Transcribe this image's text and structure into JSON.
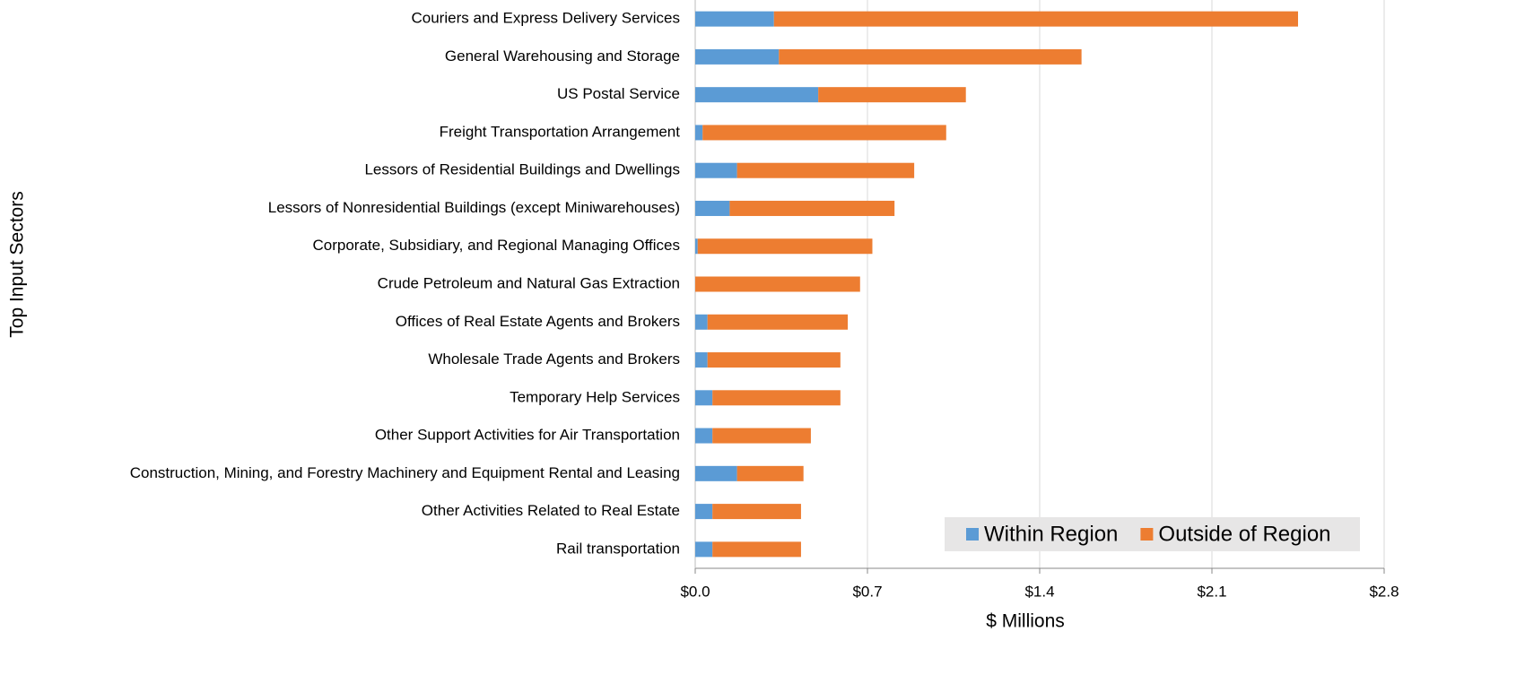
{
  "chart_data": {
    "type": "stacked_bar_horizontal",
    "y_axis_label": "Top Input Sectors",
    "x_axis_label": "$ Millions",
    "categories": [
      "Couriers and Express Delivery Services",
      "General Warehousing and Storage",
      "US Postal Service",
      "Freight Transportation Arrangement",
      "Lessors of Residential Buildings and Dwellings",
      "Lessors of Nonresidential Buildings (except Miniwarehouses)",
      "Corporate, Subsidiary, and Regional Managing Offices",
      "Crude Petroleum and Natural Gas Extraction",
      "Offices of Real Estate Agents and Brokers",
      "Wholesale Trade Agents and Brokers",
      "Temporary Help Services",
      "Other Support Activities for Air Transportation",
      "Construction, Mining, and Forestry Machinery and Equipment Rental and Leasing",
      "Other Activities Related to Real Estate",
      "Rail transportation"
    ],
    "series": [
      {
        "name": "Within Region",
        "color": "#5b9bd5",
        "values": [
          0.32,
          0.34,
          0.5,
          0.03,
          0.17,
          0.14,
          0.01,
          0,
          0.05,
          0.05,
          0.07,
          0.07,
          0.17,
          0.07,
          0.07
        ]
      },
      {
        "name": "Outside of Region",
        "color": "#ed7d31",
        "values": [
          2.13,
          1.23,
          0.6,
          0.99,
          0.72,
          0.67,
          0.71,
          0.67,
          0.57,
          0.54,
          0.52,
          0.4,
          0.27,
          0.36,
          0.36
        ]
      }
    ],
    "xlim": [
      0,
      2.8
    ],
    "xticks": [
      {
        "value": 0,
        "label": "$0.0"
      },
      {
        "value": 0.7,
        "label": "$0.7"
      },
      {
        "value": 1.4,
        "label": "$1.4"
      },
      {
        "value": 2.1,
        "label": "$2.1"
      },
      {
        "value": 2.8,
        "label": "$2.8"
      }
    ],
    "grid": true,
    "legend": "lower right"
  }
}
